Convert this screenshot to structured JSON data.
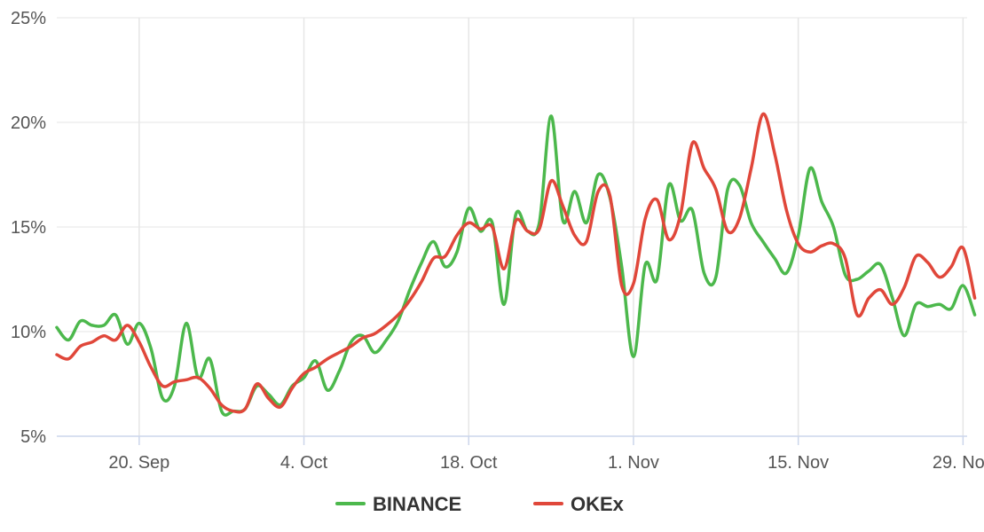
{
  "chart_data": {
    "type": "line",
    "title": "",
    "xlabel": "",
    "ylabel": "",
    "x_ticks": [
      "20. Sep",
      "4. Oct",
      "18. Oct",
      "1. Nov",
      "15. Nov",
      "29. Nov"
    ],
    "x_tick_dates": [
      "2020-09-20",
      "2020-10-04",
      "2020-10-18",
      "2020-11-01",
      "2020-11-15",
      "2020-11-29"
    ],
    "x_range": [
      "2020-09-13",
      "2020-11-29"
    ],
    "y_ticks": [
      "5%",
      "10%",
      "15%",
      "20%",
      "25%"
    ],
    "ylim": [
      5,
      25
    ],
    "grid": "vertical",
    "legend_position": "bottom-center",
    "x": [
      "2020-09-13",
      "2020-09-14",
      "2020-09-15",
      "2020-09-16",
      "2020-09-17",
      "2020-09-18",
      "2020-09-19",
      "2020-09-20",
      "2020-09-21",
      "2020-09-22",
      "2020-09-23",
      "2020-09-24",
      "2020-09-25",
      "2020-09-26",
      "2020-09-27",
      "2020-09-28",
      "2020-09-29",
      "2020-09-30",
      "2020-10-01",
      "2020-10-02",
      "2020-10-03",
      "2020-10-04",
      "2020-10-05",
      "2020-10-06",
      "2020-10-07",
      "2020-10-08",
      "2020-10-09",
      "2020-10-10",
      "2020-10-11",
      "2020-10-12",
      "2020-10-13",
      "2020-10-14",
      "2020-10-15",
      "2020-10-16",
      "2020-10-17",
      "2020-10-18",
      "2020-10-19",
      "2020-10-20",
      "2020-10-21",
      "2020-10-22",
      "2020-10-23",
      "2020-10-24",
      "2020-10-25",
      "2020-10-26",
      "2020-10-27",
      "2020-10-28",
      "2020-10-29",
      "2020-10-30",
      "2020-10-31",
      "2020-11-01",
      "2020-11-02",
      "2020-11-03",
      "2020-11-04",
      "2020-11-05",
      "2020-11-06",
      "2020-11-07",
      "2020-11-08",
      "2020-11-09",
      "2020-11-10",
      "2020-11-11",
      "2020-11-12",
      "2020-11-13",
      "2020-11-14",
      "2020-11-15",
      "2020-11-16",
      "2020-11-17",
      "2020-11-18",
      "2020-11-19",
      "2020-11-20",
      "2020-11-21",
      "2020-11-22",
      "2020-11-23",
      "2020-11-24",
      "2020-11-25",
      "2020-11-26",
      "2020-11-27",
      "2020-11-28",
      "2020-11-29",
      "2020-11-30"
    ],
    "series": [
      {
        "name": "BINANCE",
        "color": "#4cb84c",
        "values": [
          10.2,
          9.6,
          10.5,
          10.3,
          10.3,
          10.8,
          9.4,
          10.4,
          9.2,
          6.8,
          7.4,
          10.4,
          7.8,
          8.7,
          6.2,
          6.2,
          6.3,
          7.4,
          7.0,
          6.5,
          7.4,
          7.8,
          8.6,
          7.2,
          8.1,
          9.5,
          9.8,
          9.0,
          9.6,
          10.5,
          12.0,
          13.3,
          14.3,
          13.1,
          13.8,
          15.9,
          14.8,
          15.2,
          11.3,
          15.6,
          14.8,
          15.2,
          20.3,
          15.3,
          16.7,
          15.2,
          17.5,
          16.4,
          13.1,
          8.8,
          13.2,
          12.5,
          17.0,
          15.3,
          15.8,
          12.8,
          12.6,
          16.8,
          17.0,
          15.2,
          14.3,
          13.5,
          12.8,
          14.6,
          17.8,
          16.2,
          15.0,
          12.7,
          12.5,
          12.9,
          13.2,
          11.6,
          9.8,
          11.3,
          11.2,
          11.3,
          11.1,
          12.2,
          10.8
        ]
      },
      {
        "name": "OKEx",
        "color": "#e0473a",
        "values": [
          8.9,
          8.7,
          9.3,
          9.5,
          9.8,
          9.6,
          10.3,
          9.5,
          8.3,
          7.4,
          7.6,
          7.7,
          7.8,
          7.3,
          6.5,
          6.2,
          6.3,
          7.5,
          6.8,
          6.4,
          7.3,
          8.0,
          8.3,
          8.7,
          9.0,
          9.3,
          9.7,
          9.9,
          10.3,
          10.8,
          11.5,
          12.4,
          13.5,
          13.6,
          14.6,
          15.2,
          14.9,
          15.0,
          13.0,
          15.3,
          14.8,
          14.9,
          17.2,
          16.0,
          14.6,
          14.3,
          16.7,
          16.5,
          12.2,
          12.3,
          15.4,
          16.3,
          14.4,
          15.6,
          19.0,
          17.8,
          16.8,
          14.8,
          15.4,
          17.8,
          20.4,
          18.5,
          15.8,
          14.2,
          13.8,
          14.1,
          14.2,
          13.5,
          10.8,
          11.6,
          12.0,
          11.3,
          12.1,
          13.6,
          13.3,
          12.6,
          13.1,
          14.0,
          11.6
        ]
      }
    ]
  }
}
